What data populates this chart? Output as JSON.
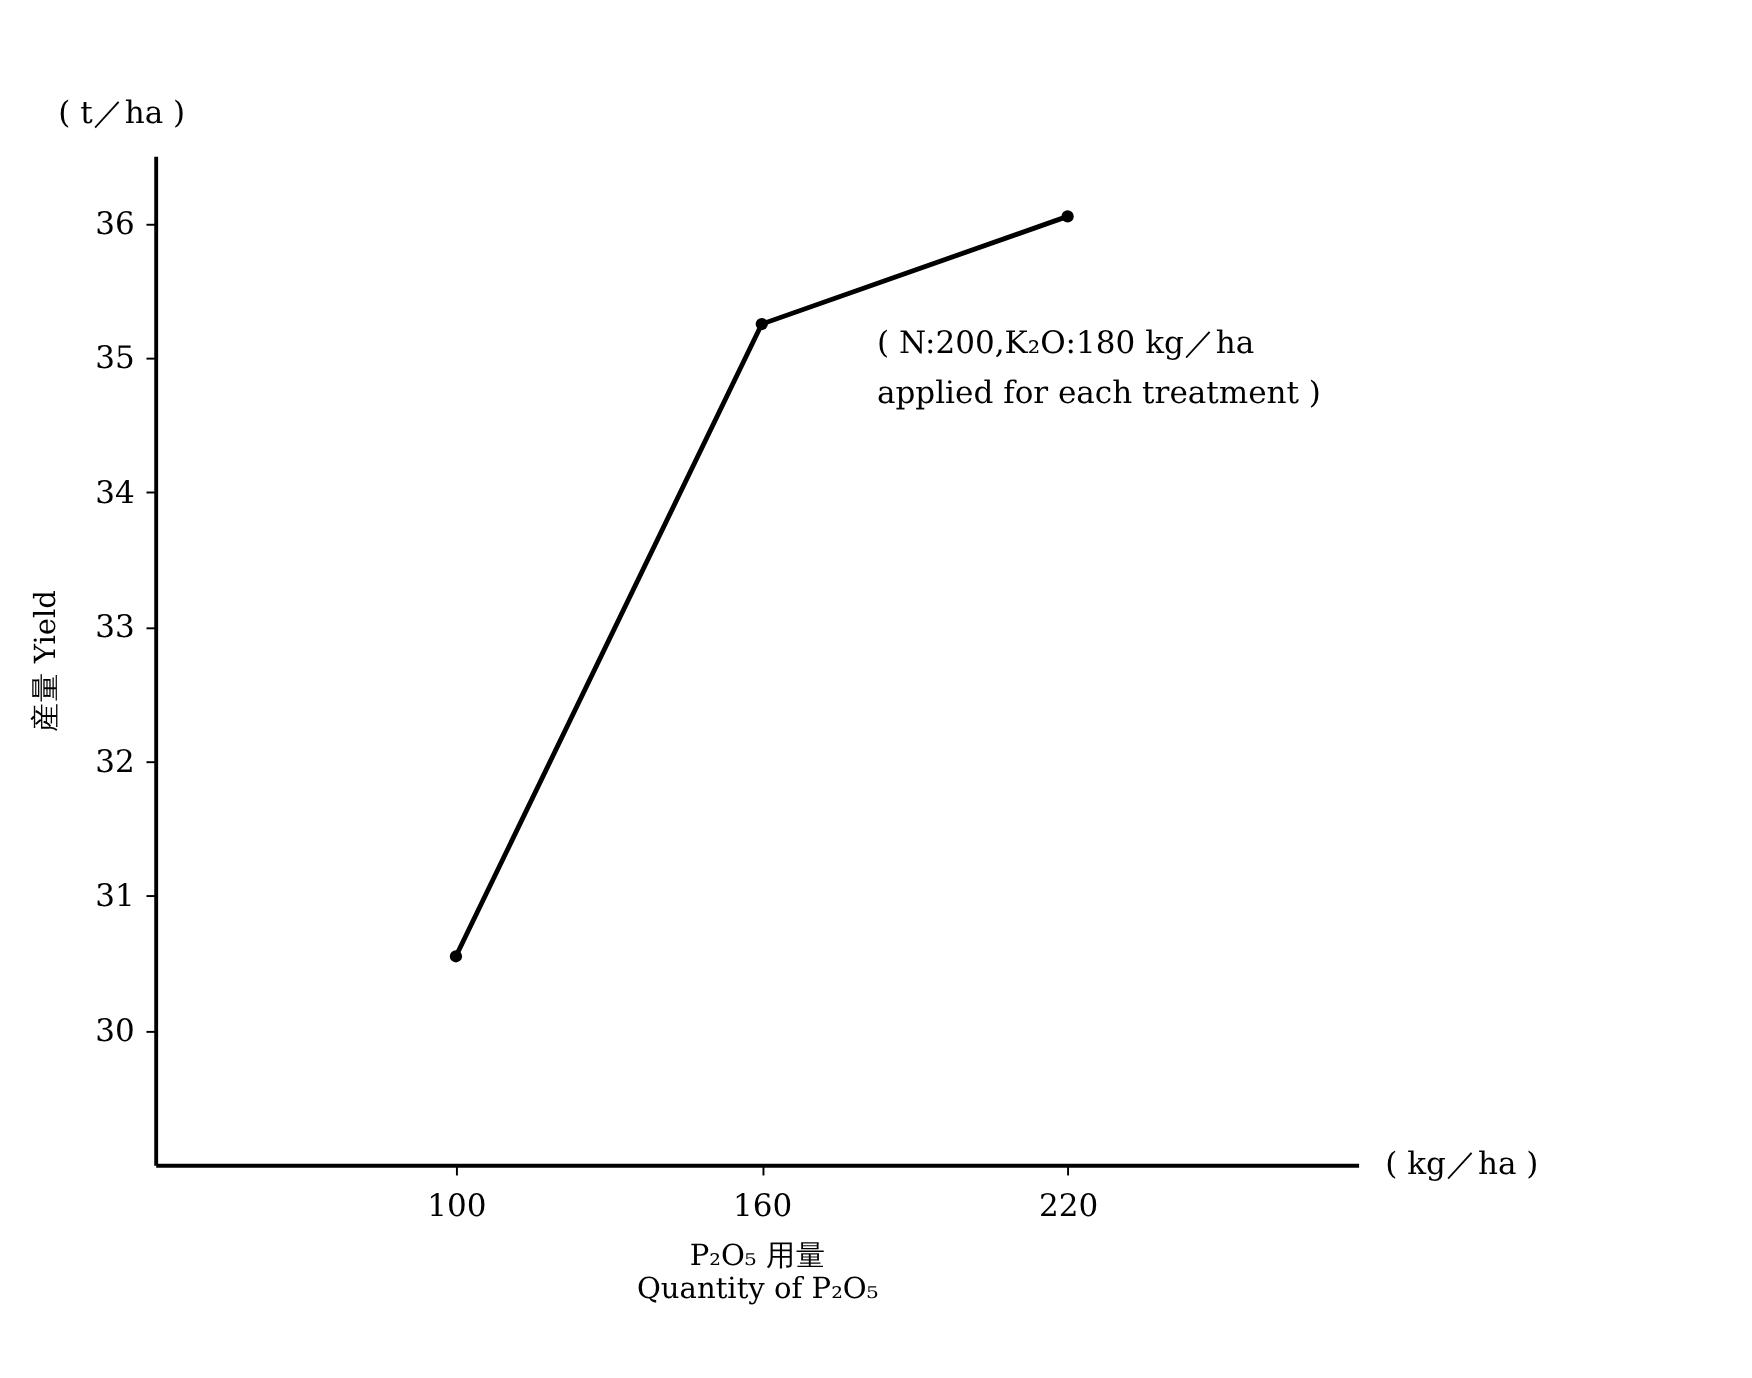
{
  "chart_data": {
    "type": "line",
    "xlabel": "P₂O₅ 用量\nQuantity of P₂O₅",
    "ylabel": "産量 Yield",
    "x": [
      100,
      160,
      220
    ],
    "series": [
      {
        "color": "#000000",
        "values": [
          30.55,
          35.25,
          36.05
        ]
      }
    ],
    "xlim": [
      41,
      277
    ],
    "xticks": [
      100,
      160,
      220
    ],
    "ylim": [
      29,
      36.5
    ],
    "yticks": [
      30,
      31,
      32,
      33,
      34,
      35,
      36
    ],
    "grid": false,
    "legend": false,
    "marker": "circle",
    "line_style": "solid",
    "annotations": [
      "( t／ha )",
      "( kg／ha )",
      "( N:200,K₂O:180 kg／ha\napplied for each treatment )"
    ]
  }
}
